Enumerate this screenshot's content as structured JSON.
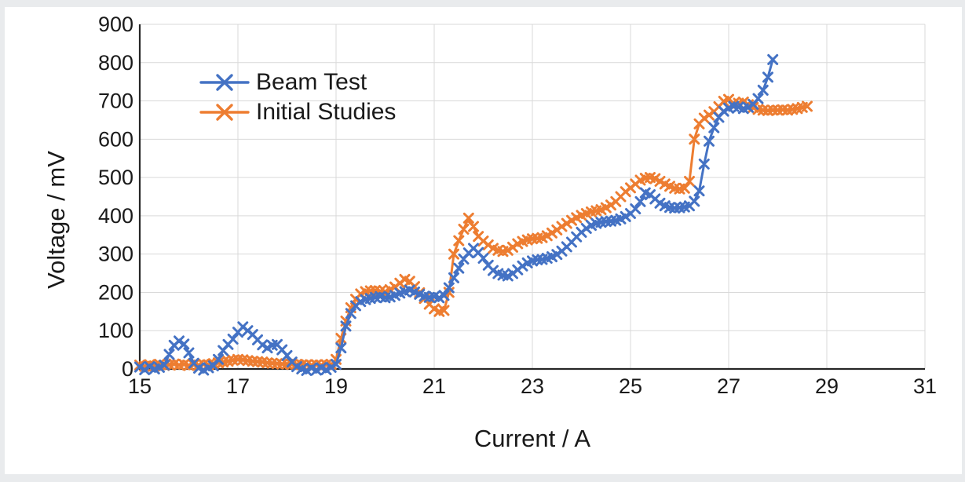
{
  "page": {
    "background": "#e9ebed",
    "canvas": "#ffffff"
  },
  "chart_data": {
    "type": "line",
    "title": "",
    "xlabel": "Current / A",
    "ylabel": "Voltage / mV",
    "xlim": [
      15,
      31
    ],
    "ylim": [
      0,
      900
    ],
    "x_ticks": [
      15,
      17,
      19,
      21,
      23,
      25,
      27,
      29,
      31
    ],
    "y_ticks": [
      0,
      100,
      200,
      300,
      400,
      500,
      600,
      700,
      800,
      900
    ],
    "grid": true,
    "grid_color": "#d9d9d9",
    "axis_color": "#262626",
    "text_color": "#1a1a1a",
    "legend_position": "top-left-inside",
    "marker": "x",
    "series": [
      {
        "name": "Beam Test",
        "color": "#4472C4",
        "x_start": 15.0,
        "x_step": 0.1,
        "x_end": 27.9,
        "values": [
          5,
          -2,
          6,
          0,
          4,
          10,
          38,
          62,
          73,
          65,
          42,
          15,
          2,
          -3,
          3,
          8,
          25,
          48,
          64,
          78,
          96,
          110,
          100,
          90,
          76,
          63,
          55,
          62,
          64,
          50,
          35,
          18,
          6,
          0,
          -4,
          2,
          -3,
          3,
          -2,
          4,
          12,
          55,
          112,
          145,
          165,
          176,
          181,
          184,
          187,
          189,
          186,
          188,
          192,
          198,
          202,
          206,
          201,
          195,
          190,
          187,
          189,
          186,
          192,
          212,
          238,
          263,
          287,
          303,
          315,
          304,
          289,
          271,
          257,
          249,
          245,
          243,
          249,
          259,
          269,
          277,
          282,
          285,
          286,
          289,
          293,
          299,
          308,
          319,
          331,
          345,
          357,
          367,
          375,
          380,
          383,
          385,
          386,
          388,
          392,
          398,
          406,
          418,
          437,
          460,
          455,
          444,
          433,
          426,
          422,
          420,
          421,
          423,
          426,
          438,
          465,
          535,
          595,
          630,
          657,
          673,
          681,
          686,
          684,
          680,
          683,
          691,
          706,
          728,
          762,
          808
        ]
      },
      {
        "name": "Initial Studies",
        "color": "#ED7D31",
        "x_start": 15.0,
        "x_step": 0.1,
        "x_end": 28.6,
        "values": [
          10,
          7,
          11,
          8,
          12,
          9,
          11,
          13,
          10,
          12,
          9,
          11,
          10,
          12,
          11,
          14,
          16,
          18,
          20,
          23,
          25,
          24,
          22,
          20,
          19,
          18,
          16,
          15,
          14,
          13,
          13,
          12,
          12,
          11,
          11,
          10,
          11,
          10,
          11,
          12,
          25,
          80,
          125,
          160,
          182,
          196,
          202,
          204,
          205,
          203,
          202,
          207,
          214,
          224,
          234,
          229,
          215,
          199,
          184,
          169,
          157,
          150,
          153,
          200,
          300,
          335,
          365,
          394,
          372,
          346,
          334,
          324,
          315,
          310,
          307,
          310,
          318,
          327,
          333,
          337,
          340,
          341,
          343,
          348,
          355,
          363,
          372,
          380,
          388,
          395,
          401,
          406,
          410,
          413,
          416,
          421,
          428,
          437,
          450,
          463,
          473,
          483,
          493,
          498,
          500,
          497,
          490,
          483,
          477,
          472,
          470,
          472,
          490,
          600,
          640,
          655,
          663,
          672,
          685,
          699,
          704,
          694,
          694,
          697,
          690,
          683,
          678,
          676,
          675,
          676,
          676,
          677,
          676,
          678,
          680,
          683,
          686
        ]
      }
    ]
  }
}
